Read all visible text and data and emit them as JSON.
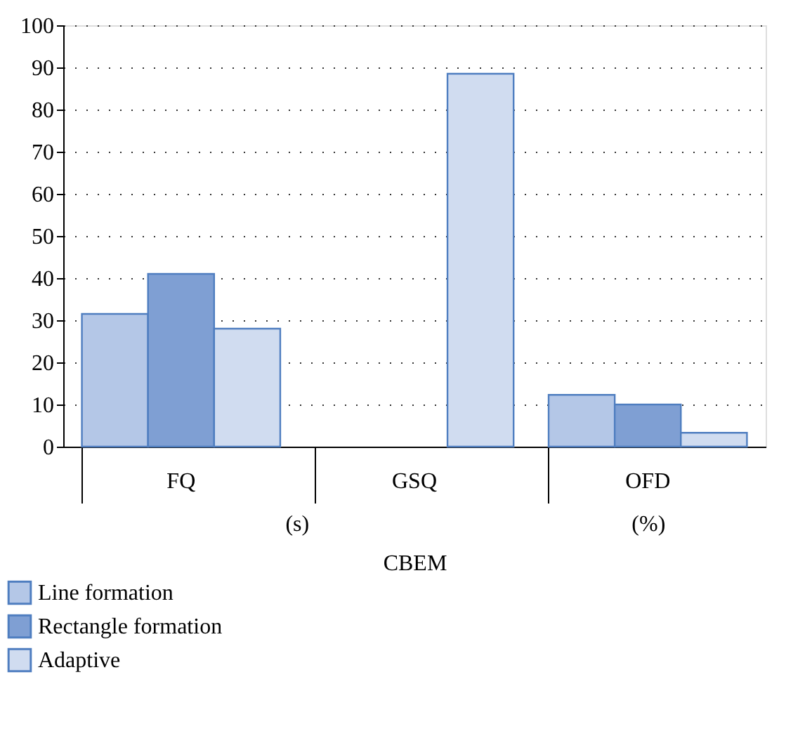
{
  "chart_data": {
    "type": "bar",
    "xlabel": "CBEM",
    "categories": [
      "FQ",
      "GSQ",
      "OFD"
    ],
    "series": [
      {
        "name": "Line formation",
        "color": "#b4c7e7",
        "values": [
          31.5,
          null,
          12.3
        ]
      },
      {
        "name": "Rectangle formation",
        "color": "#7f9fd3",
        "values": [
          41,
          null,
          10
        ]
      },
      {
        "name": "Adaptive",
        "color": "#d0dcf0",
        "values": [
          28,
          88.5,
          3.3
        ]
      }
    ],
    "annotations": [
      "(s)",
      "(%)"
    ],
    "ylim": [
      0,
      100
    ],
    "yticks": [
      0,
      10,
      20,
      30,
      40,
      50,
      60,
      70,
      80,
      90,
      100
    ],
    "grid": "y",
    "legend": "bottom left"
  }
}
